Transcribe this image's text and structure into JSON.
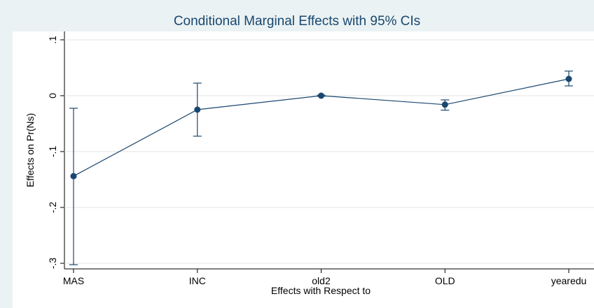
{
  "chart_data": {
    "type": "errorbar-line",
    "title": "Conditional Marginal Effects with 95% CIs",
    "x_label": "Effects with Respect to",
    "y_label": "Effects on Pr(Ns)",
    "categories": [
      "MAS",
      "INC",
      "old2",
      "OLD",
      "yearedu"
    ],
    "values": [
      -0.144,
      -0.025,
      0,
      -0.016,
      0.03
    ],
    "ci_lower": [
      -0.3025,
      -0.0725,
      -0.001,
      -0.026,
      0.0175
    ],
    "ci_upper": [
      -0.0225,
      0.0225,
      0.001,
      -0.0075,
      0.044
    ],
    "color": "#1a476f",
    "ylim": [
      -0.31,
      0.115
    ],
    "yticks": [
      {
        "value": 0.1,
        "label": ".1"
      },
      0,
      {
        "value": -0.1,
        "label": "-.1"
      },
      {
        "value": -0.2,
        "label": "-.2"
      },
      {
        "value": -0.3,
        "label": "-.3"
      }
    ],
    "grid": true
  }
}
